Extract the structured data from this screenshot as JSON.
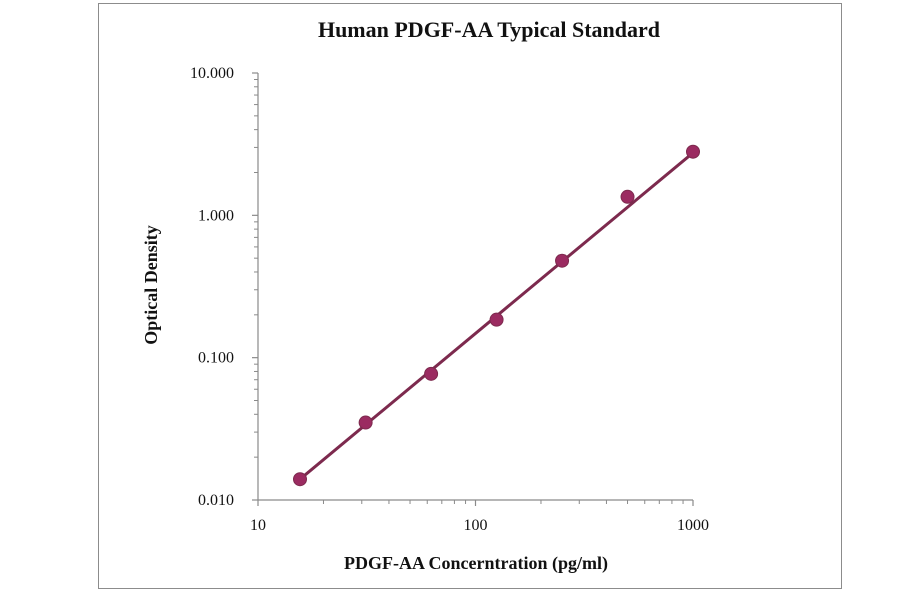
{
  "chart_data": {
    "type": "line",
    "title": "Human PDGF-AA Typical Standard",
    "xlabel": "PDGF-AA Concerntration (pg/ml)",
    "ylabel": "Optical Density",
    "x_scale": "log",
    "y_scale": "log",
    "xlim": [
      10,
      1000
    ],
    "ylim": [
      0.01,
      10
    ],
    "x_ticks": [
      "10",
      "100",
      "1000"
    ],
    "y_ticks": [
      "0.010",
      "0.100",
      "1.000",
      "10.000"
    ],
    "grid": false,
    "legend": "none",
    "colors": {
      "series": "#7d2a4e",
      "points": "#9b2b61"
    },
    "series": [
      {
        "x": [
          15.6,
          31.25,
          62.5,
          125,
          250,
          500,
          1000
        ],
        "y": [
          0.014,
          0.035,
          0.077,
          0.185,
          0.48,
          1.35,
          2.8
        ]
      }
    ],
    "fit_line": {
      "x": [
        15.6,
        1000
      ],
      "y": [
        0.014,
        2.75
      ]
    }
  }
}
